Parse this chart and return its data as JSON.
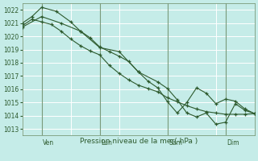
{
  "xlabel": "Pression niveau de la mer( hPa )",
  "bg_color": "#c5ece8",
  "grid_color": "#ffffff",
  "line_color": "#2d5a2d",
  "ylim": [
    1012.5,
    1022.5
  ],
  "yticks": [
    1013,
    1014,
    1015,
    1016,
    1017,
    1018,
    1019,
    1020,
    1021,
    1022
  ],
  "xlim": [
    0,
    96
  ],
  "vline_positions": [
    8,
    32,
    60,
    84
  ],
  "day_labels": [
    "Ven",
    "Lun",
    "Sam",
    "Dim"
  ],
  "series1_x": [
    0,
    4,
    8,
    12,
    16,
    20,
    24,
    28,
    32,
    36,
    40,
    44,
    48,
    52,
    56,
    60,
    64,
    68,
    72,
    76,
    80,
    84,
    88,
    92,
    96
  ],
  "series1_y": [
    1020.8,
    1021.3,
    1021.1,
    1020.9,
    1020.4,
    1019.8,
    1019.3,
    1018.9,
    1018.6,
    1017.8,
    1017.2,
    1016.7,
    1016.3,
    1016.05,
    1015.8,
    1015.35,
    1015.05,
    1014.75,
    1014.5,
    1014.3,
    1014.2,
    1014.1,
    1014.1,
    1014.1,
    1014.15
  ],
  "series2_x": [
    0,
    4,
    8,
    14,
    20,
    24,
    28,
    32,
    36,
    40,
    44,
    48,
    52,
    56,
    60,
    64,
    68,
    72,
    76,
    80,
    84,
    88,
    92,
    96
  ],
  "series2_y": [
    1021.0,
    1021.5,
    1022.2,
    1021.9,
    1021.1,
    1020.4,
    1019.9,
    1019.2,
    1018.85,
    1018.5,
    1018.1,
    1017.3,
    1016.6,
    1016.1,
    1015.05,
    1014.2,
    1015.0,
    1016.1,
    1015.7,
    1014.9,
    1015.25,
    1015.1,
    1014.5,
    1014.15
  ],
  "series3_x": [
    0,
    8,
    16,
    24,
    32,
    40,
    48,
    56,
    60,
    64,
    68,
    72,
    76,
    80,
    84,
    88,
    92,
    96
  ],
  "series3_y": [
    1020.7,
    1021.5,
    1021.0,
    1020.4,
    1019.15,
    1018.85,
    1017.3,
    1016.55,
    1016.05,
    1015.2,
    1014.2,
    1013.9,
    1014.2,
    1013.35,
    1013.5,
    1014.9,
    1014.4,
    1014.15
  ]
}
